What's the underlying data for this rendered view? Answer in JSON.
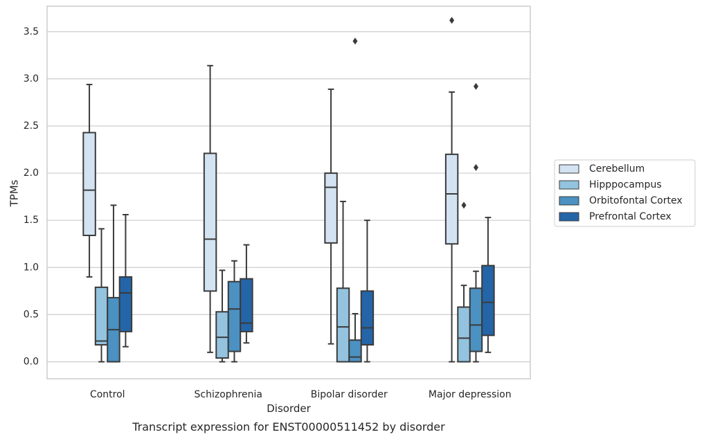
{
  "chart_data": {
    "type": "boxplot",
    "caption": "Transcript expression for ENST00000511452 by disorder",
    "xlabel": "Disorder",
    "ylabel": "TPMs",
    "ylim": [
      -0.18,
      3.77
    ],
    "yticks": [
      "0.0",
      "0.5",
      "1.0",
      "1.5",
      "2.0",
      "2.5",
      "3.0",
      "3.5"
    ],
    "grid": "horizontal",
    "legend_position": "right",
    "categories": [
      "Control",
      "Schizophrenia",
      "Bipolar disorder",
      "Major depression"
    ],
    "series": [
      {
        "name": "Cerebellum",
        "color": "#d3e3f2",
        "boxes": [
          {
            "min": 0.9,
            "q1": 1.34,
            "median": 1.82,
            "q3": 2.43,
            "max": 2.94,
            "outliers": []
          },
          {
            "min": 0.1,
            "q1": 0.75,
            "median": 1.3,
            "q3": 2.21,
            "max": 3.14,
            "outliers": []
          },
          {
            "min": 0.19,
            "q1": 1.26,
            "median": 1.85,
            "q3": 2.0,
            "max": 2.89,
            "outliers": []
          },
          {
            "min": 0.0,
            "q1": 1.25,
            "median": 1.78,
            "q3": 2.2,
            "max": 2.86,
            "outliers": [
              3.62
            ]
          }
        ]
      },
      {
        "name": "Hipppocampus",
        "color": "#93c3df",
        "boxes": [
          {
            "min": 0.0,
            "q1": 0.18,
            "median": 0.22,
            "q3": 0.79,
            "max": 1.41,
            "outliers": []
          },
          {
            "min": 0.0,
            "q1": 0.04,
            "median": 0.26,
            "q3": 0.53,
            "max": 0.97,
            "outliers": []
          },
          {
            "min": 0.0,
            "q1": 0.0,
            "median": 0.37,
            "q3": 0.78,
            "max": 1.7,
            "outliers": []
          },
          {
            "min": 0.0,
            "q1": 0.0,
            "median": 0.25,
            "q3": 0.58,
            "max": 0.81,
            "outliers": [
              1.66
            ]
          }
        ]
      },
      {
        "name": "Orbitofontal Cortex",
        "color": "#4b91c2",
        "boxes": [
          {
            "min": 0.0,
            "q1": 0.0,
            "median": 0.34,
            "q3": 0.68,
            "max": 1.66,
            "outliers": []
          },
          {
            "min": 0.0,
            "q1": 0.11,
            "median": 0.56,
            "q3": 0.85,
            "max": 1.07,
            "outliers": []
          },
          {
            "min": 0.0,
            "q1": 0.0,
            "median": 0.05,
            "q3": 0.23,
            "max": 0.51,
            "outliers": [
              3.4
            ]
          },
          {
            "min": 0.0,
            "q1": 0.11,
            "median": 0.39,
            "q3": 0.78,
            "max": 0.96,
            "outliers": [
              2.06,
              2.92
            ]
          }
        ]
      },
      {
        "name": "Prefrontal Cortex",
        "color": "#2465a8",
        "boxes": [
          {
            "min": 0.16,
            "q1": 0.32,
            "median": 0.73,
            "q3": 0.9,
            "max": 1.56,
            "outliers": []
          },
          {
            "min": 0.2,
            "q1": 0.32,
            "median": 0.41,
            "q3": 0.88,
            "max": 1.24,
            "outliers": []
          },
          {
            "min": 0.0,
            "q1": 0.18,
            "median": 0.36,
            "q3": 0.75,
            "max": 1.5,
            "outliers": []
          },
          {
            "min": 0.1,
            "q1": 0.28,
            "median": 0.63,
            "q3": 1.02,
            "max": 1.53,
            "outliers": []
          }
        ]
      }
    ]
  }
}
